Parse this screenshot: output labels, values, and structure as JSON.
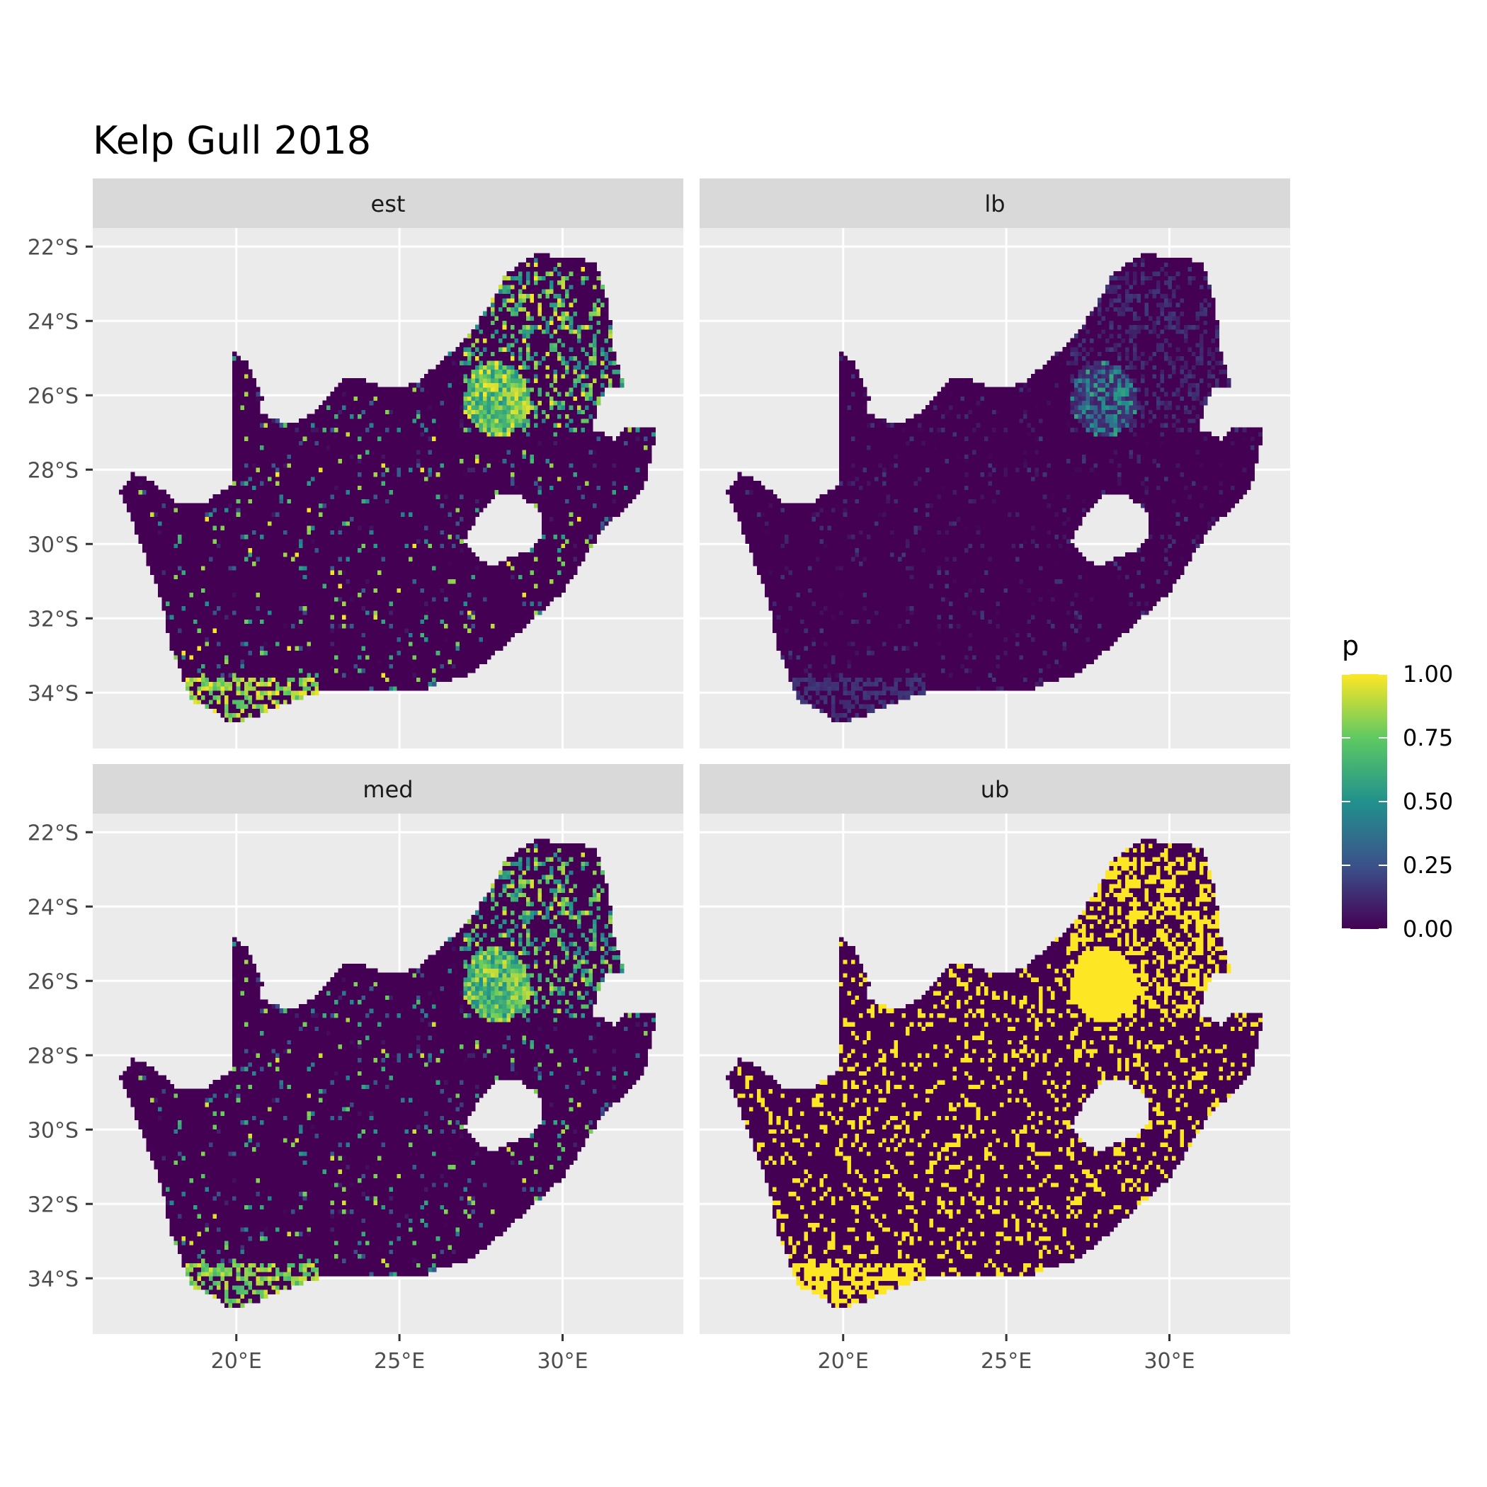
{
  "title": "Kelp Gull 2018",
  "panels": [
    {
      "id": "est",
      "label": "est",
      "mode": "est"
    },
    {
      "id": "lb",
      "label": "lb",
      "mode": "lb"
    },
    {
      "id": "med",
      "label": "med",
      "mode": "med"
    },
    {
      "id": "ub",
      "label": "ub",
      "mode": "ub"
    }
  ],
  "y_ticks": [
    {
      "value": -22,
      "label": "22°S"
    },
    {
      "value": -24,
      "label": "24°S"
    },
    {
      "value": -26,
      "label": "26°S"
    },
    {
      "value": -28,
      "label": "28°S"
    },
    {
      "value": -30,
      "label": "30°S"
    },
    {
      "value": -32,
      "label": "32°S"
    },
    {
      "value": -34,
      "label": "34°S"
    }
  ],
  "x_ticks": [
    {
      "value": 20,
      "label": "20°E"
    },
    {
      "value": 25,
      "label": "25°E"
    },
    {
      "value": 30,
      "label": "30°E"
    }
  ],
  "legend": {
    "title": "p",
    "ticks": [
      {
        "value": 1.0,
        "label": "1.00"
      },
      {
        "value": 0.75,
        "label": "0.75"
      },
      {
        "value": 0.5,
        "label": "0.50"
      },
      {
        "value": 0.25,
        "label": "0.25"
      },
      {
        "value": 0.0,
        "label": "0.00"
      }
    ],
    "colors": [
      "#440154",
      "#3b528b",
      "#21918c",
      "#5ec962",
      "#fde725"
    ]
  },
  "colors": {
    "panel_bg": "#ebebeb",
    "strip_bg": "#d9d9d9",
    "grid": "#ffffff",
    "text": "#4d4d4d"
  },
  "chart_data": {
    "type": "heatmap",
    "title": "Kelp Gull 2018",
    "facets": [
      "est",
      "lb",
      "med",
      "ub"
    ],
    "fill_variable": "p",
    "fill_range": [
      0,
      1
    ],
    "xlim": [
      15.6,
      33.7
    ],
    "ylim": [
      -35.5,
      -21.5
    ]
  }
}
